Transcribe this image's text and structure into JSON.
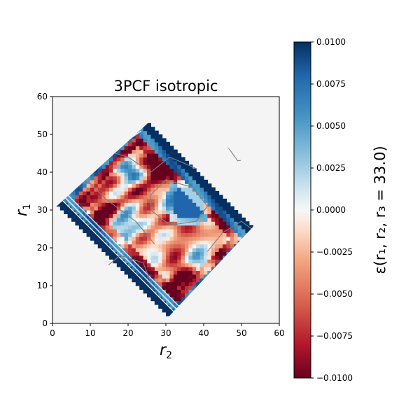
{
  "chart_data": {
    "type": "heatmap",
    "title": "3PCF isotropic",
    "xlabel": "r",
    "xlabel_sub": "2",
    "ylabel": "r",
    "ylabel_sub": "1",
    "xlim": [
      0,
      60
    ],
    "ylim": [
      0,
      60
    ],
    "x_ticks": [
      "0",
      "10",
      "20",
      "30",
      "40",
      "50",
      "60"
    ],
    "y_ticks": [
      "0",
      "10",
      "20",
      "30",
      "40",
      "50",
      "60"
    ],
    "colorbar": {
      "label": "ε(r₁, r₂, r₃ = 33.0)",
      "colormap": "RdBu",
      "range": [
        -0.01,
        0.01
      ],
      "ticks": [
        "−0.0100",
        "−0.0075",
        "−0.0050",
        "−0.0025",
        "0.0000",
        "0.0025",
        "0.0050",
        "0.0075",
        "0.0100"
      ]
    },
    "valid_region": "|r1 - r2| <= 33.0 <= r1 + r2",
    "r3": 33.0,
    "background_color": "#f4f4f4",
    "contours": {
      "positive_color": "#ffffff",
      "negative_color": "#808080"
    }
  }
}
